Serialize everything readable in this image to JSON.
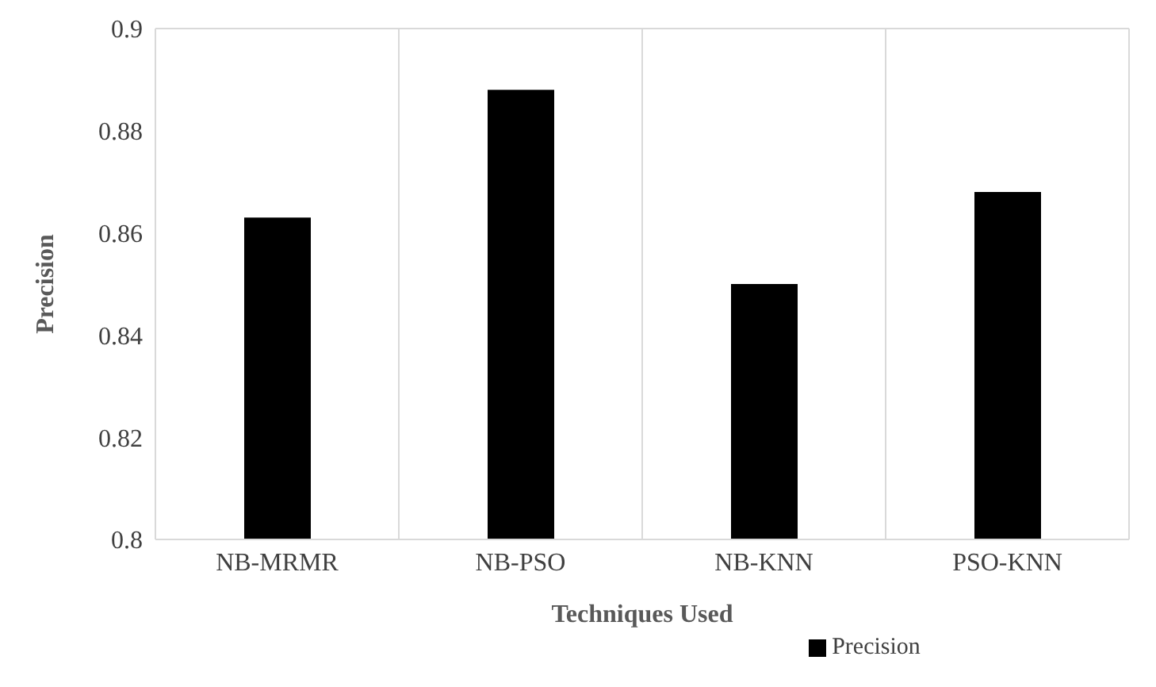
{
  "chart_data": {
    "type": "bar",
    "xlabel": "Techniques Used",
    "ylabel": "Precision",
    "categories": [
      "NB-MRMR",
      "NB-PSO",
      "NB-KNN",
      "PSO-KNN"
    ],
    "series": [
      {
        "name": "Precision",
        "color": "#000000",
        "values": [
          0.863,
          0.888,
          0.85,
          0.868
        ]
      }
    ],
    "ylim": [
      0.8,
      0.9
    ],
    "yticks": [
      0.8,
      0.82,
      0.84,
      0.86,
      0.88,
      0.9
    ],
    "grid": true,
    "legend": "bottom"
  }
}
